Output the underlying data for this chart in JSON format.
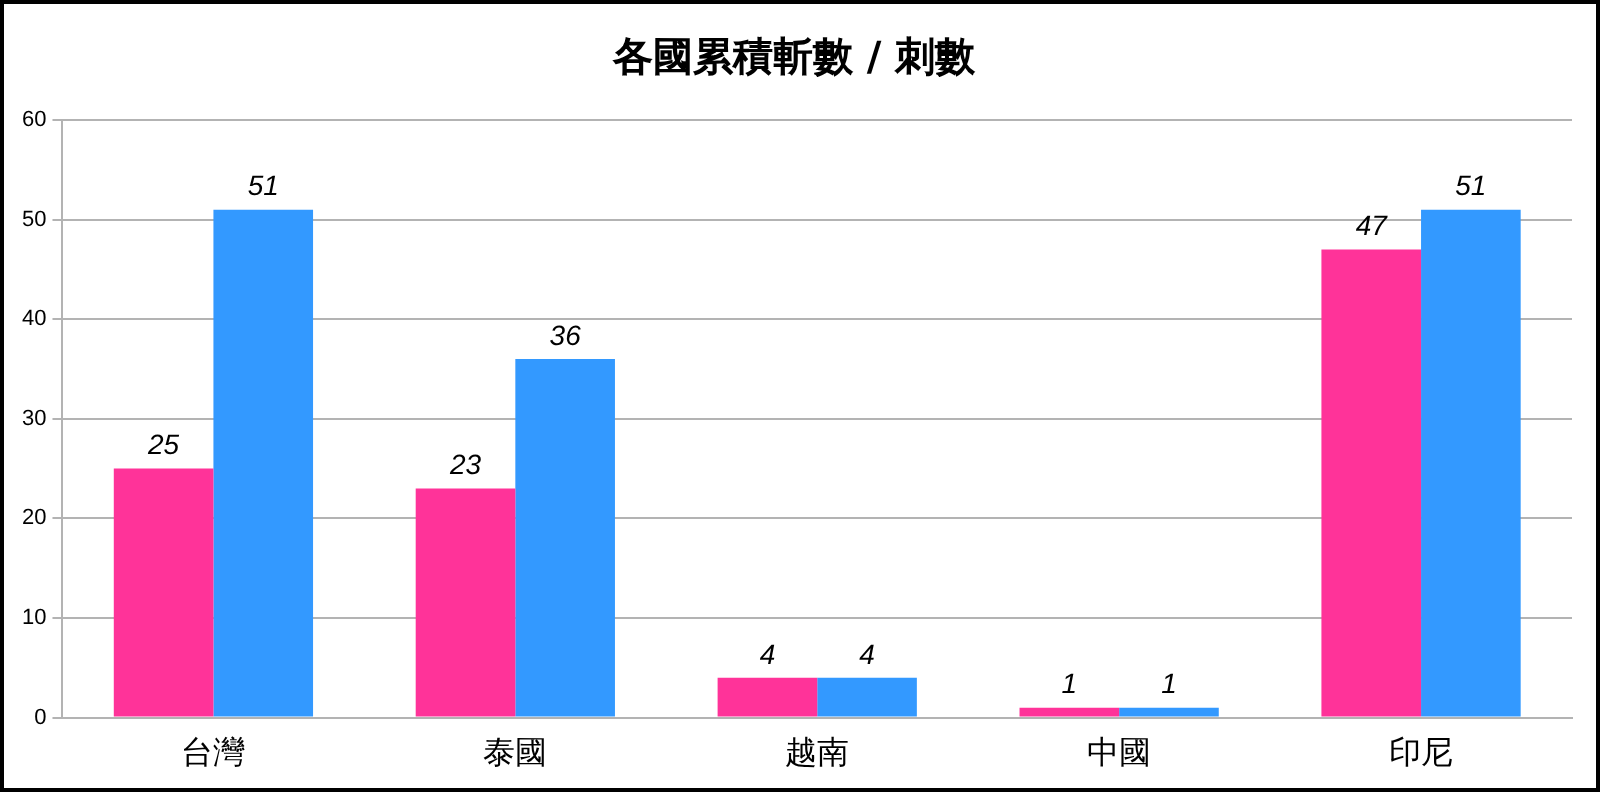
{
  "chart_data": {
    "type": "bar",
    "title": "各國累積斬數 / 刺數",
    "categories": [
      "台灣",
      "泰國",
      "越南",
      "中國",
      "印尼"
    ],
    "series": [
      {
        "color": "#ff3399",
        "values": [
          25,
          23,
          4,
          1,
          47
        ]
      },
      {
        "color": "#3399ff",
        "values": [
          51,
          36,
          4,
          1,
          51
        ]
      }
    ],
    "ylim": [
      0,
      60
    ],
    "yticks": [
      0,
      10,
      20,
      30,
      40,
      50,
      60
    ],
    "grid": "y",
    "legend": false,
    "data_labels": true
  }
}
